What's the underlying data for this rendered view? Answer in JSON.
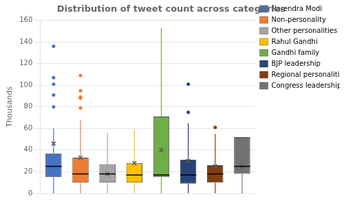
{
  "chart_data": {
    "type": "box",
    "title": "Distribution of tweet count across categories",
    "ylabel": "Thousands",
    "categories": [
      "Narendra Modi",
      "Non-personality",
      "Other personalities",
      "Rahul Gandhi",
      "Gandhi family",
      "BJP leadership",
      "Regional personalities",
      "Congress leadership"
    ],
    "values": [
      {
        "whislo": 0,
        "q1": 15,
        "med": 25,
        "q3": 37,
        "whishi": 60,
        "mean": 46,
        "fliers": [
          80,
          91,
          101,
          107,
          136
        ]
      },
      {
        "whislo": 0,
        "q1": 10,
        "med": 18,
        "q3": 33,
        "whishi": 68,
        "mean": 33,
        "fliers": [
          79,
          88,
          89,
          95,
          109
        ]
      },
      {
        "whislo": 0,
        "q1": 10,
        "med": 18,
        "q3": 27,
        "whishi": 56,
        "mean": 18,
        "fliers": []
      },
      {
        "whislo": 0,
        "q1": 10,
        "med": 17,
        "q3": 28,
        "whishi": 59,
        "mean": 28,
        "fliers": []
      },
      {
        "whislo": 0,
        "q1": 15,
        "med": 17,
        "q3": 71,
        "whishi": 153,
        "mean": 40,
        "fliers": []
      },
      {
        "whislo": 0,
        "q1": 9,
        "med": 17,
        "q3": 31,
        "whishi": 65,
        "mean": 30,
        "fliers": [
          75,
          101
        ]
      },
      {
        "whislo": 0,
        "q1": 10,
        "med": 18,
        "q3": 26,
        "whishi": 55,
        "mean": 25,
        "fliers": [
          61
        ]
      },
      {
        "whislo": 0,
        "q1": 18,
        "med": 25,
        "q3": 52,
        "whishi": 52,
        "mean": 25,
        "fliers": []
      }
    ],
    "colors": [
      "#4472C4",
      "#ED7D31",
      "#A5A5A5",
      "#FFC000",
      "#70AD47",
      "#264478",
      "#843C0C",
      "#767171"
    ],
    "ylim": [
      0,
      160
    ],
    "yticks": [
      0,
      20,
      40,
      60,
      80,
      100,
      120,
      140,
      160
    ],
    "grid": true,
    "legend": "right",
    "tick_labels": "y"
  }
}
